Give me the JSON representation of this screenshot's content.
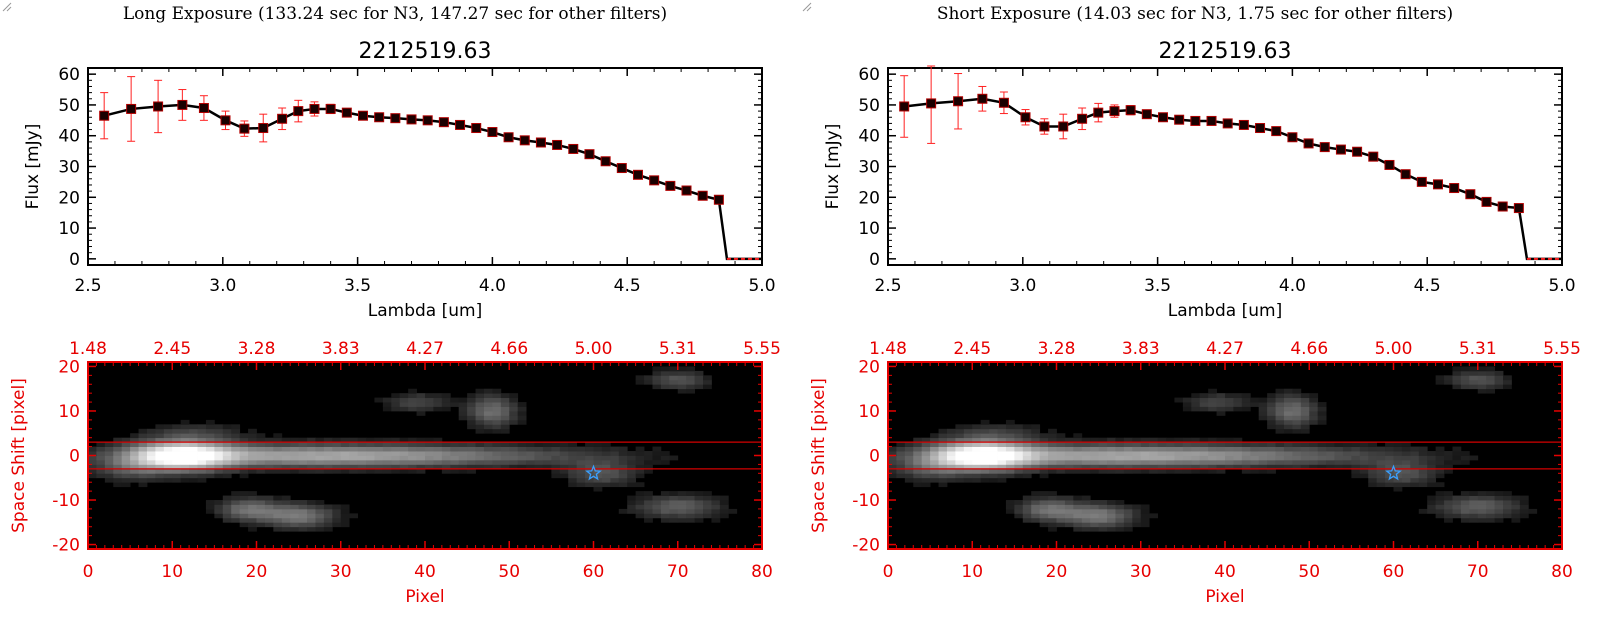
{
  "chart_data": [
    {
      "type": "line",
      "panel": "left",
      "exposure_title": "Long Exposure (133.24 sec for N3, 147.27 sec for other filters)",
      "title": "2212519.63",
      "xlabel": "Lambda [um]",
      "ylabel": "Flux [mJy]",
      "xlim": [
        2.5,
        5.0
      ],
      "ylim": [
        -2,
        62
      ],
      "xticks": [
        "2.5",
        "3.0",
        "3.5",
        "4.0",
        "4.5",
        "5.0"
      ],
      "xtick_values": [
        2.5,
        3.0,
        3.5,
        4.0,
        4.5,
        5.0
      ],
      "yticks": [
        "0",
        "10",
        "20",
        "30",
        "40",
        "50",
        "60"
      ],
      "ytick_values": [
        0,
        10,
        20,
        30,
        40,
        50,
        60
      ],
      "x": [
        2.56,
        2.66,
        2.76,
        2.85,
        2.93,
        3.01,
        3.08,
        3.15,
        3.22,
        3.28,
        3.34,
        3.4,
        3.46,
        3.52,
        3.58,
        3.64,
        3.7,
        3.76,
        3.82,
        3.88,
        3.94,
        4.0,
        4.06,
        4.12,
        4.18,
        4.24,
        4.3,
        4.36,
        4.42,
        4.48,
        4.54,
        4.6,
        4.66,
        4.72,
        4.78,
        4.84
      ],
      "y": [
        46.5,
        48.7,
        49.5,
        50.0,
        49.0,
        45.0,
        42.3,
        42.5,
        45.5,
        48.0,
        48.7,
        48.7,
        47.5,
        46.5,
        46.0,
        45.7,
        45.3,
        45.0,
        44.4,
        43.5,
        42.5,
        41.2,
        39.5,
        38.5,
        37.8,
        37.0,
        35.7,
        34.0,
        31.7,
        29.5,
        27.3,
        25.5,
        23.7,
        22.2,
        20.5,
        19.2
      ],
      "yerr": [
        7.5,
        10.5,
        8.5,
        5.0,
        4.0,
        3.0,
        2.5,
        4.5,
        3.5,
        3.5,
        2.3,
        1.5,
        1.0,
        0.8,
        0.7,
        0.6,
        0.6,
        0.6,
        0.6,
        0.6,
        0.6,
        0.6,
        0.5,
        0.5,
        0.5,
        0.5,
        0.5,
        0.5,
        0.5,
        0.5,
        0.5,
        0.5,
        0.5,
        0.5,
        0.5,
        0.5
      ],
      "tail_x": [
        4.87,
        4.9,
        4.95,
        5.0
      ],
      "tail_y": [
        0,
        0,
        0,
        0
      ]
    },
    {
      "type": "line",
      "panel": "right",
      "exposure_title": "Short Exposure (14.03 sec for N3, 1.75 sec for other filters)",
      "title": "2212519.63",
      "xlabel": "Lambda [um]",
      "ylabel": "Flux [mJy]",
      "xlim": [
        2.5,
        5.0
      ],
      "ylim": [
        -2,
        62
      ],
      "xticks": [
        "2.5",
        "3.0",
        "3.5",
        "4.0",
        "4.5",
        "5.0"
      ],
      "xtick_values": [
        2.5,
        3.0,
        3.5,
        4.0,
        4.5,
        5.0
      ],
      "yticks": [
        "0",
        "10",
        "20",
        "30",
        "40",
        "50",
        "60"
      ],
      "ytick_values": [
        0,
        10,
        20,
        30,
        40,
        50,
        60
      ],
      "x": [
        2.56,
        2.66,
        2.76,
        2.85,
        2.93,
        3.01,
        3.08,
        3.15,
        3.22,
        3.28,
        3.34,
        3.4,
        3.46,
        3.52,
        3.58,
        3.64,
        3.7,
        3.76,
        3.82,
        3.88,
        3.94,
        4.0,
        4.06,
        4.12,
        4.18,
        4.24,
        4.3,
        4.36,
        4.42,
        4.48,
        4.54,
        4.6,
        4.66,
        4.72,
        4.78,
        4.84
      ],
      "y": [
        49.5,
        50.5,
        51.2,
        52.0,
        50.7,
        46.0,
        43.0,
        43.0,
        45.5,
        47.5,
        48.0,
        48.3,
        47.0,
        46.0,
        45.2,
        44.8,
        44.8,
        44.0,
        43.5,
        42.5,
        41.5,
        39.5,
        37.5,
        36.3,
        35.5,
        34.8,
        33.2,
        30.5,
        27.5,
        25.0,
        24.2,
        23.0,
        21.0,
        18.5,
        17.0,
        16.5
      ],
      "yerr": [
        10.0,
        13.0,
        9.0,
        4.0,
        3.5,
        2.5,
        2.5,
        4.0,
        3.5,
        3.0,
        2.0,
        1.5,
        1.0,
        0.8,
        0.7,
        0.6,
        0.6,
        0.6,
        0.6,
        0.6,
        0.6,
        0.6,
        0.5,
        0.5,
        0.5,
        0.5,
        0.5,
        0.5,
        0.5,
        0.5,
        0.5,
        0.5,
        0.5,
        0.5,
        0.5,
        0.5
      ],
      "tail_x": [
        4.87,
        4.9,
        4.95,
        5.0
      ],
      "tail_y": [
        0,
        0,
        0,
        0
      ]
    },
    {
      "type": "heatmap",
      "panel": "left",
      "xlabel": "Pixel",
      "ylabel": "Space Shift [pixel]",
      "xlim": [
        0,
        80
      ],
      "ylim": [
        -21,
        21
      ],
      "xticks": [
        "0",
        "10",
        "20",
        "30",
        "40",
        "50",
        "60",
        "70",
        "80"
      ],
      "xtick_values": [
        0,
        10,
        20,
        30,
        40,
        50,
        60,
        70,
        80
      ],
      "yticks": [
        "-20",
        "-10",
        "0",
        "10",
        "20"
      ],
      "ytick_values": [
        -20,
        -10,
        0,
        10,
        20
      ],
      "top_axis_ticks": [
        "1.48",
        "2.45",
        "3.28",
        "3.83",
        "4.27",
        "4.66",
        "5.00",
        "5.31",
        "5.55"
      ],
      "aperture_lines": [
        3,
        -3
      ],
      "star_marker": [
        60,
        -4
      ],
      "sources": [
        {
          "x": 11,
          "y": 0,
          "sx": 4,
          "sy": 2.2,
          "amp": 1.0
        },
        {
          "x": 25,
          "y": 0,
          "sx": 14,
          "sy": 1.8,
          "amp": 0.5
        },
        {
          "x": 45,
          "y": 0,
          "sx": 14,
          "sy": 1.6,
          "amp": 0.22
        },
        {
          "x": 19,
          "y": -12,
          "sx": 2.5,
          "sy": 1.8,
          "amp": 0.35
        },
        {
          "x": 25,
          "y": -13.5,
          "sx": 3,
          "sy": 1.8,
          "amp": 0.4
        },
        {
          "x": 48,
          "y": 10,
          "sx": 2,
          "sy": 2.5,
          "amp": 0.35
        },
        {
          "x": 39,
          "y": 12,
          "sx": 2.5,
          "sy": 1.5,
          "amp": 0.2
        },
        {
          "x": 70,
          "y": 17,
          "sx": 2.5,
          "sy": 1.5,
          "amp": 0.25
        },
        {
          "x": 70,
          "y": -11.5,
          "sx": 3.5,
          "sy": 1.8,
          "amp": 0.3
        },
        {
          "x": 61,
          "y": -4,
          "sx": 3,
          "sy": 2,
          "amp": 0.25
        },
        {
          "x": 13,
          "y": 5,
          "sx": 4,
          "sy": 1.5,
          "amp": 0.15
        },
        {
          "x": 5,
          "y": -3,
          "sx": 3,
          "sy": 2,
          "amp": 0.2
        }
      ]
    },
    {
      "type": "heatmap",
      "panel": "right",
      "xlabel": "Pixel",
      "ylabel": "Space Shift [pixel]",
      "xlim": [
        0,
        80
      ],
      "ylim": [
        -21,
        21
      ],
      "xticks": [
        "0",
        "10",
        "20",
        "30",
        "40",
        "50",
        "60",
        "70",
        "80"
      ],
      "xtick_values": [
        0,
        10,
        20,
        30,
        40,
        50,
        60,
        70,
        80
      ],
      "yticks": [
        "-20",
        "-10",
        "0",
        "10",
        "20"
      ],
      "ytick_values": [
        -20,
        -10,
        0,
        10,
        20
      ],
      "top_axis_ticks": [
        "1.48",
        "2.45",
        "3.28",
        "3.83",
        "4.27",
        "4.66",
        "5.00",
        "5.31",
        "5.55"
      ],
      "aperture_lines": [
        3,
        -3
      ],
      "star_marker": [
        60,
        -4
      ],
      "sources": [
        {
          "x": 11,
          "y": 0,
          "sx": 4,
          "sy": 2.2,
          "amp": 1.0
        },
        {
          "x": 25,
          "y": 0,
          "sx": 14,
          "sy": 1.8,
          "amp": 0.5
        },
        {
          "x": 45,
          "y": 0,
          "sx": 14,
          "sy": 1.6,
          "amp": 0.22
        },
        {
          "x": 19,
          "y": -12,
          "sx": 2.5,
          "sy": 1.8,
          "amp": 0.35
        },
        {
          "x": 25,
          "y": -13.5,
          "sx": 3,
          "sy": 1.8,
          "amp": 0.4
        },
        {
          "x": 48,
          "y": 10,
          "sx": 2,
          "sy": 2.5,
          "amp": 0.35
        },
        {
          "x": 39,
          "y": 12,
          "sx": 2.5,
          "sy": 1.5,
          "amp": 0.2
        },
        {
          "x": 70,
          "y": 17,
          "sx": 2.5,
          "sy": 1.5,
          "amp": 0.25
        },
        {
          "x": 70,
          "y": -11.5,
          "sx": 3.5,
          "sy": 1.8,
          "amp": 0.3
        },
        {
          "x": 61,
          "y": -4,
          "sx": 3,
          "sy": 2,
          "amp": 0.25
        },
        {
          "x": 13,
          "y": 5,
          "sx": 4,
          "sy": 1.5,
          "amp": 0.15
        },
        {
          "x": 5,
          "y": -3,
          "sx": 3,
          "sy": 2,
          "amp": 0.2
        }
      ]
    }
  ],
  "colors": {
    "axis_black": "#000000",
    "axis_red": "#e60000",
    "errorbar": "#ff2020",
    "marker_fill": "#1a0000",
    "marker_edge": "#b00000",
    "aperture_line": "#d40000",
    "star": "#3aa0ff"
  }
}
